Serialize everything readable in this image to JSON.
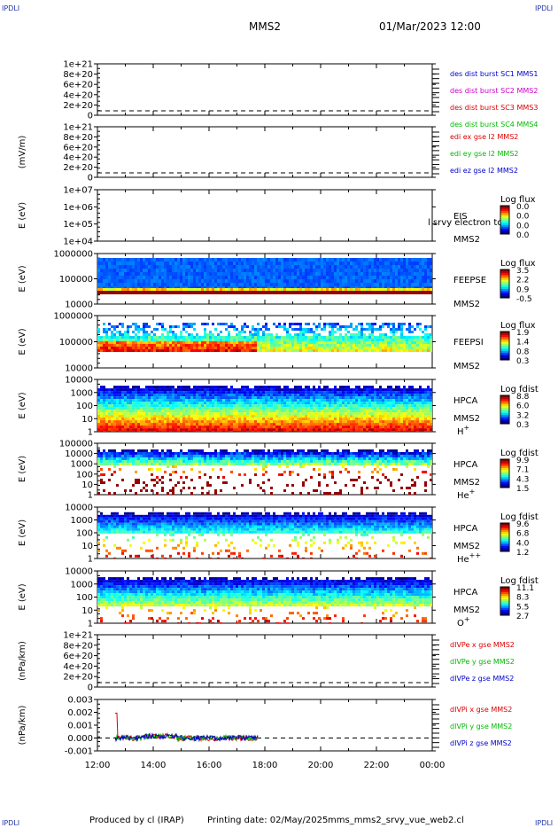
{
  "corners": {
    "tl": "IPDLI",
    "tr": "IPDLI",
    "bl": "IPDLI",
    "br": "IPDLI"
  },
  "header": {
    "spacecraft": "MMS2",
    "datetime": "01/Mar/2023 12:00"
  },
  "footer": {
    "produced_by": "Produced by cl (IRAP)",
    "printing_date": "Printing date: 02/May/2025",
    "script": "mms_mms2_srvy_vue_web2.cl"
  },
  "colors": {
    "mms1": "#0000cc",
    "mms2": "#cc00cc",
    "mms3": "#dd0000",
    "mms4": "#00bb00",
    "x": "#dd0000",
    "y": "#00bb00",
    "z": "#0000cc"
  },
  "chart_data": {
    "type": "stacked-timeseries",
    "xlim": [
      "12:00",
      "00:00"
    ],
    "x_ticks": [
      "12:00",
      "14:00",
      "16:00",
      "18:00",
      "20:00",
      "22:00",
      "00:00"
    ],
    "panels": [
      {
        "id": "p1",
        "kind": "line",
        "ylabel": "",
        "y_ticks": [
          "1e+21",
          "8e+20",
          "6e+20",
          "4e+20",
          "2e+20",
          "0"
        ],
        "legend": [
          {
            "text": "des dist burst SC1 MMS1",
            "color": "#0000cc"
          },
          {
            "text": "des dist burst SC2 MMS2",
            "color": "#cc00cc"
          },
          {
            "text": "des dist burst SC3 MMS3",
            "color": "#dd0000"
          },
          {
            "text": "des dist burst SC4 MMS4",
            "color": "#00bb00"
          }
        ]
      },
      {
        "id": "p2",
        "kind": "line",
        "ylabel": "(mV/m)",
        "y_ticks": [
          "1e+21",
          "8e+20",
          "6e+20",
          "4e+20",
          "2e+20",
          "0"
        ],
        "legend": [
          {
            "text": "edi ex gse l2 MMS2",
            "color": "#dd0000"
          },
          {
            "text": "edi ey gse l2 MMS2",
            "color": "#00bb00"
          },
          {
            "text": "edi ez gse l2 MMS2",
            "color": "#0000cc"
          }
        ]
      },
      {
        "id": "p3",
        "kind": "spectrogram",
        "ylabel": "E (eV)",
        "y_ticks": [
          "1e+07",
          "1e+06",
          "1e+05",
          "1e+04"
        ],
        "labels": [
          "EIS",
          "MMS2"
        ],
        "overlay": "l srvy electron to",
        "cb_title": "Log flux",
        "cb_ticks": [
          "0.0",
          "0.0",
          "0.0",
          "0.0"
        ]
      },
      {
        "id": "p4",
        "kind": "spectrogram",
        "ylabel": "E (eV)",
        "y_ticks": [
          "1000000",
          "100000",
          "10000"
        ],
        "labels": [
          "FEEPSE",
          "MMS2"
        ],
        "cb_title": "Log flux",
        "cb_ticks": [
          "3.5",
          "2.2",
          "0.9",
          "-0.5"
        ]
      },
      {
        "id": "p5",
        "kind": "spectrogram",
        "ylabel": "E (eV)",
        "y_ticks": [
          "1000000",
          "100000",
          "10000"
        ],
        "labels": [
          "FEEPSI",
          "MMS2"
        ],
        "cb_title": "Log flux",
        "cb_ticks": [
          "1.9",
          "1.4",
          "0.8",
          "0.3"
        ]
      },
      {
        "id": "p6",
        "kind": "spectrogram",
        "ylabel": "E (eV)",
        "y_ticks": [
          "10000",
          "1000",
          "100",
          "10",
          "1"
        ],
        "labels": [
          "HPCA",
          "MMS2"
        ],
        "species": "H",
        "charge": "+",
        "cb_title": "Log fdist",
        "cb_ticks": [
          "8.8",
          "6.0",
          "3.2",
          "0.3"
        ]
      },
      {
        "id": "p7",
        "kind": "spectrogram",
        "ylabel": "E (eV)",
        "y_ticks": [
          "100000",
          "10000",
          "1000",
          "100",
          "10",
          "1"
        ],
        "labels": [
          "HPCA",
          "MMS2"
        ],
        "species": "He",
        "charge": "+",
        "cb_title": "Log fdist",
        "cb_ticks": [
          "9.9",
          "7.1",
          "4.3",
          "1.5"
        ]
      },
      {
        "id": "p8",
        "kind": "spectrogram",
        "ylabel": "E (eV)",
        "y_ticks": [
          "10000",
          "1000",
          "100",
          "10",
          "1"
        ],
        "labels": [
          "HPCA",
          "MMS2"
        ],
        "species": "He",
        "charge": "++",
        "cb_title": "Log fdist",
        "cb_ticks": [
          "9.6",
          "6.8",
          "4.0",
          "1.2"
        ]
      },
      {
        "id": "p9",
        "kind": "spectrogram",
        "ylabel": "E (eV)",
        "y_ticks": [
          "10000",
          "1000",
          "100",
          "10",
          "1"
        ],
        "labels": [
          "HPCA",
          "MMS2"
        ],
        "species": "O",
        "charge": "+",
        "cb_title": "Log fdist",
        "cb_ticks": [
          "11.1",
          "8.3",
          "5.5",
          "2.7"
        ]
      },
      {
        "id": "p10",
        "kind": "line",
        "ylabel": "(nPa/km)",
        "y_ticks": [
          "1e+21",
          "8e+20",
          "6e+20",
          "4e+20",
          "2e+20",
          "0"
        ],
        "legend": [
          {
            "text": "dIVPe x gse MMS2",
            "color": "#dd0000"
          },
          {
            "text": "dIVPe y gse MMS2",
            "color": "#00bb00"
          },
          {
            "text": "dIVPe z gse MMS2",
            "color": "#0000cc"
          }
        ]
      },
      {
        "id": "p11",
        "kind": "line",
        "ylabel": "(nPa/km)",
        "y_ticks": [
          "0.003",
          "0.002",
          "0.001",
          "0.000",
          "-0.001"
        ],
        "legend": [
          {
            "text": "dIVPi x gse MMS2",
            "color": "#dd0000"
          },
          {
            "text": "dIVPi y gse MMS2",
            "color": "#00bb00"
          },
          {
            "text": "dIVPi z gse MMS2",
            "color": "#0000cc"
          }
        ]
      }
    ]
  }
}
